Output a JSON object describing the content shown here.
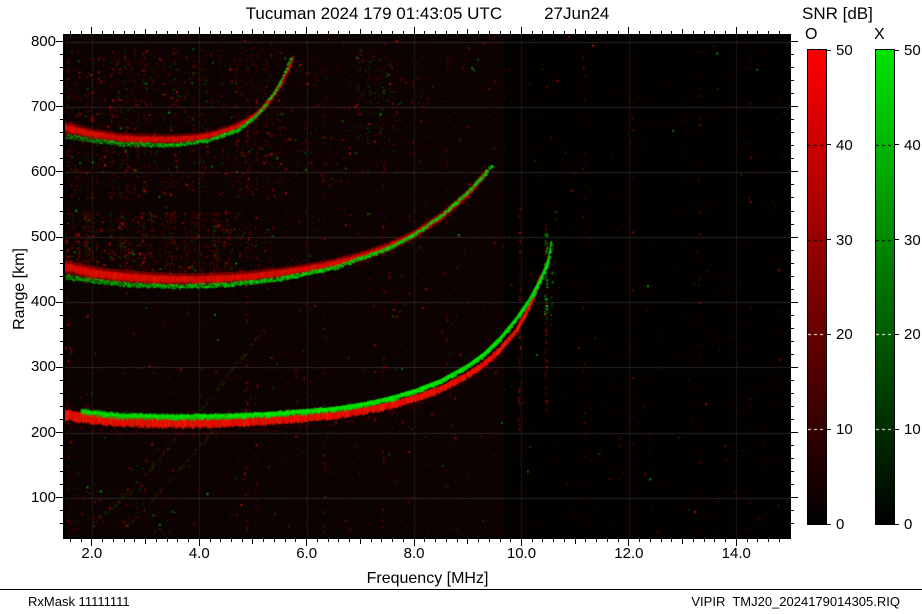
{
  "title": "Tucuman 2024 179 01:43:05 UTC",
  "date_label": "27Jun24",
  "snr_title": "SNR [dB]",
  "footer": {
    "left": "RxMask 11111111",
    "right": "VIPIR  TMJ20_2024179014305.RIQ"
  },
  "colorbars": {
    "o_label": "O",
    "x_label": "X",
    "tick_labels": [
      "0",
      "10",
      "20",
      "30",
      "40",
      "50"
    ],
    "min": 0,
    "max": 50,
    "o_color": "#ff0000",
    "x_color": "#00e400"
  },
  "chart_data": {
    "type": "heatmap",
    "subtype": "ionogram",
    "title": "Tucuman 2024 179 01:43:05 UTC 27Jun24",
    "xlabel": "Frequency [MHz]",
    "ylabel": "Range [km]",
    "xlim": [
      1.5,
      15.0
    ],
    "ylim": [
      40,
      810
    ],
    "x_tick_labels": [
      "2.0",
      "4.0",
      "6.0",
      "8.0",
      "10.0",
      "12.0",
      "14.0"
    ],
    "y_tick_labels": [
      "100",
      "200",
      "300",
      "400",
      "500",
      "600",
      "700",
      "800"
    ],
    "x_minor_step": 0.2,
    "y_minor_step": 20,
    "background_color": "#000000",
    "o_mode_color": "#ff0000",
    "x_mode_color": "#00dd00",
    "series": [
      {
        "name": "F-layer 1st hop O-mode",
        "mode": "O",
        "width": 9,
        "alpha": 0.95,
        "points": [
          [
            1.5,
            228
          ],
          [
            2.0,
            221
          ],
          [
            2.5,
            218
          ],
          [
            3.0,
            216
          ],
          [
            3.5,
            215
          ],
          [
            4.0,
            215
          ],
          [
            4.5,
            216
          ],
          [
            5.0,
            218
          ],
          [
            5.5,
            220
          ],
          [
            6.0,
            223
          ],
          [
            6.5,
            227
          ],
          [
            7.0,
            233
          ],
          [
            7.5,
            241
          ],
          [
            8.0,
            252
          ],
          [
            8.5,
            267
          ],
          [
            9.0,
            288
          ],
          [
            9.3,
            305
          ],
          [
            9.6,
            327
          ],
          [
            9.9,
            356
          ],
          [
            10.1,
            385
          ],
          [
            10.25,
            412
          ],
          [
            10.35,
            438
          ]
        ]
      },
      {
        "name": "F-layer 1st hop X-mode",
        "mode": "X",
        "width": 4,
        "alpha": 0.9,
        "speckle": false,
        "points": [
          [
            1.8,
            233
          ],
          [
            2.5,
            227
          ],
          [
            3.5,
            225
          ],
          [
            4.5,
            226
          ],
          [
            5.5,
            230
          ],
          [
            6.5,
            237
          ],
          [
            7.0,
            243
          ],
          [
            7.5,
            252
          ],
          [
            8.0,
            264
          ],
          [
            8.5,
            280
          ],
          [
            9.0,
            303
          ],
          [
            9.3,
            321
          ],
          [
            9.6,
            345
          ],
          [
            9.9,
            375
          ],
          [
            10.15,
            405
          ],
          [
            10.35,
            435
          ],
          [
            10.5,
            465
          ],
          [
            10.55,
            492
          ]
        ]
      },
      {
        "name": "2nd hop O-mode",
        "mode": "O",
        "width": 7,
        "alpha": 0.7,
        "diffuse": true,
        "points": [
          [
            1.5,
            455
          ],
          [
            2.0,
            445
          ],
          [
            2.5,
            440
          ],
          [
            3.0,
            437
          ],
          [
            3.5,
            435
          ],
          [
            4.0,
            435
          ],
          [
            4.5,
            437
          ],
          [
            5.0,
            440
          ],
          [
            5.5,
            445
          ],
          [
            6.0,
            451
          ],
          [
            6.5,
            459
          ],
          [
            7.0,
            470
          ],
          [
            7.5,
            484
          ],
          [
            8.0,
            504
          ],
          [
            8.5,
            531
          ],
          [
            9.0,
            566
          ],
          [
            9.2,
            585
          ],
          [
            9.35,
            600
          ]
        ]
      },
      {
        "name": "2nd hop X-mode",
        "mode": "X",
        "width": 3,
        "alpha": 0.75,
        "speckle": true,
        "points": [
          [
            1.5,
            440
          ],
          [
            2.5,
            429
          ],
          [
            3.5,
            425
          ],
          [
            4.5,
            428
          ],
          [
            5.5,
            437
          ],
          [
            6.5,
            454
          ],
          [
            7.5,
            483
          ],
          [
            8.0,
            505
          ],
          [
            8.5,
            534
          ],
          [
            9.0,
            571
          ],
          [
            9.3,
            597
          ],
          [
            9.45,
            612
          ]
        ]
      },
      {
        "name": "3rd hop O-mode",
        "mode": "O",
        "width": 6,
        "alpha": 0.6,
        "diffuse": true,
        "points": [
          [
            1.5,
            668
          ],
          [
            2.0,
            658
          ],
          [
            2.5,
            652
          ],
          [
            3.0,
            650
          ],
          [
            3.5,
            650
          ],
          [
            4.0,
            653
          ],
          [
            4.3,
            658
          ],
          [
            4.6,
            666
          ],
          [
            4.9,
            678
          ],
          [
            5.1,
            690
          ],
          [
            5.3,
            708
          ],
          [
            5.5,
            732
          ],
          [
            5.65,
            755
          ],
          [
            5.75,
            775
          ]
        ]
      },
      {
        "name": "3rd hop X-mode",
        "mode": "X",
        "width": 3,
        "alpha": 0.6,
        "speckle": true,
        "points": [
          [
            1.5,
            656
          ],
          [
            2.5,
            644
          ],
          [
            3.5,
            642
          ],
          [
            4.2,
            650
          ],
          [
            4.7,
            665
          ],
          [
            5.0,
            683
          ],
          [
            5.2,
            701
          ],
          [
            5.45,
            731
          ],
          [
            5.6,
            757
          ],
          [
            5.7,
            776
          ]
        ]
      },
      {
        "name": "oblique echo 1",
        "mode": "mixed",
        "width": 3,
        "alpha": 0.3,
        "points": [
          [
            2.0,
            60
          ],
          [
            2.8,
            120
          ],
          [
            3.6,
            195
          ],
          [
            4.4,
            275
          ],
          [
            5.2,
            360
          ]
        ]
      },
      {
        "name": "oblique echo 2",
        "mode": "mixed",
        "width": 2,
        "alpha": 0.22,
        "points": [
          [
            2.6,
            55
          ],
          [
            3.2,
            105
          ],
          [
            3.9,
            170
          ],
          [
            4.5,
            230
          ]
        ]
      }
    ],
    "noise_regions": [
      {
        "f": [
          1.5,
          5.6
        ],
        "r": [
          560,
          790
        ],
        "density": 0.5,
        "green": 0.15,
        "streaky": true
      },
      {
        "f": [
          1.5,
          4.6
        ],
        "r": [
          430,
          540
        ],
        "density": 1.3,
        "green": 0.18,
        "streaky": true
      },
      {
        "f": [
          4.2,
          5.4
        ],
        "r": [
          430,
          520
        ],
        "density": 0.35,
        "green": 0.3,
        "streaky": true
      },
      {
        "f": [
          5.6,
          8.2
        ],
        "r": [
          580,
          790
        ],
        "density": 0.16,
        "green": 0.12,
        "streaky": true
      },
      {
        "f": [
          6.9,
          7.7
        ],
        "r": [
          640,
          780
        ],
        "density": 0.3,
        "green": 0.6,
        "streaky": true
      },
      {
        "f": [
          1.5,
          9.7
        ],
        "r": [
          40,
          810
        ],
        "density": 0.09,
        "green": 0.22,
        "streaky": true
      },
      {
        "f": [
          9.7,
          15.0
        ],
        "r": [
          40,
          810
        ],
        "density": 0.022,
        "green": 0.35,
        "streaky": false
      },
      {
        "f": [
          1.6,
          3.6
        ],
        "r": [
          45,
          115
        ],
        "density": 0.22,
        "green": 0.25,
        "streaky": true
      }
    ],
    "vertical_stripes": [
      {
        "f": 1.56,
        "r": [
          40,
          800
        ],
        "alpha": 0.12,
        "color": "red"
      },
      {
        "f": 4.87,
        "r": [
          40,
          800
        ],
        "alpha": 0.16,
        "color": "red"
      },
      {
        "f": 5.05,
        "r": [
          40,
          800
        ],
        "alpha": 0.09,
        "color": "red"
      },
      {
        "f": 6.32,
        "r": [
          40,
          800
        ],
        "alpha": 0.11,
        "color": "red"
      },
      {
        "f": 7.42,
        "r": [
          40,
          800
        ],
        "alpha": 0.12,
        "color": "red"
      },
      {
        "f": 8.6,
        "r": [
          40,
          800
        ],
        "alpha": 0.07,
        "color": "red"
      },
      {
        "f": 9.95,
        "r": [
          200,
          560
        ],
        "alpha": 0.28,
        "color": "red"
      },
      {
        "f": 10.45,
        "r": [
          230,
          520
        ],
        "alpha": 0.45,
        "color": "red",
        "green_specks": true
      },
      {
        "f": 10.55,
        "r": [
          360,
          510
        ],
        "alpha": 0.22,
        "color": "green"
      },
      {
        "f": 11.15,
        "r": [
          40,
          800
        ],
        "alpha": 0.06,
        "color": "red"
      },
      {
        "f": 12.05,
        "r": [
          40,
          800
        ],
        "alpha": 0.05,
        "color": "red"
      },
      {
        "f": 13.3,
        "r": [
          40,
          800
        ],
        "alpha": 0.06,
        "color": "red"
      },
      {
        "f": 14.25,
        "r": [
          40,
          800
        ],
        "alpha": 0.05,
        "color": "red"
      }
    ]
  }
}
